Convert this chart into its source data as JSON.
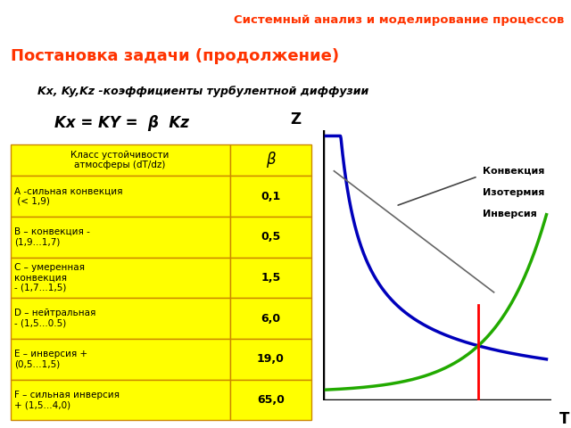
{
  "title_bar_text": "Системный анализ и моделирование процессов",
  "title_bar_color": "#66CC00",
  "title_bar_text_color": "#FF3300",
  "slide_title": "Постановка задачи (продолжение)",
  "slide_title_color": "#FF3300",
  "bg_color": "#FFFFFF",
  "subtitle_text": "Kx, Ky,Kz -коэффициенты турбулентной диффузии",
  "formula_text": "Kx = KY =  β  Kz",
  "table_bg": "#FFFF00",
  "table_border_color": "#CC8800",
  "table_header_col0": "Класс устойчивости\nатмосферы (dT/dz)",
  "table_header_col1": "β",
  "table_rows": [
    [
      "А -сильная конвекция\n (< 1,9)",
      "0,1"
    ],
    [
      "В – конвекция -\n(1,9...1,7)",
      "0,5"
    ],
    [
      "С – умеренная\nконвекция\n- (1,7...1,5)",
      "1,5"
    ],
    [
      "D – нейтральная\n- (1,5...0.5)",
      "6,0"
    ],
    [
      "Е – инверсия +\n(0,5...1,5)",
      "19,0"
    ],
    [
      "F – сильная инверсия\n+ (1,5...4,0)",
      "65,0"
    ]
  ],
  "graph_xlabel": "T",
  "graph_ylabel": "Z",
  "legend_labels": [
    "Конвекция",
    "Изотермия",
    "Инверсия"
  ],
  "curve_blue_color": "#0000BB",
  "curve_green_color": "#22AA00",
  "vline_color": "#FF0000",
  "diagonal_color": "#666666",
  "axes_color": "#000000"
}
